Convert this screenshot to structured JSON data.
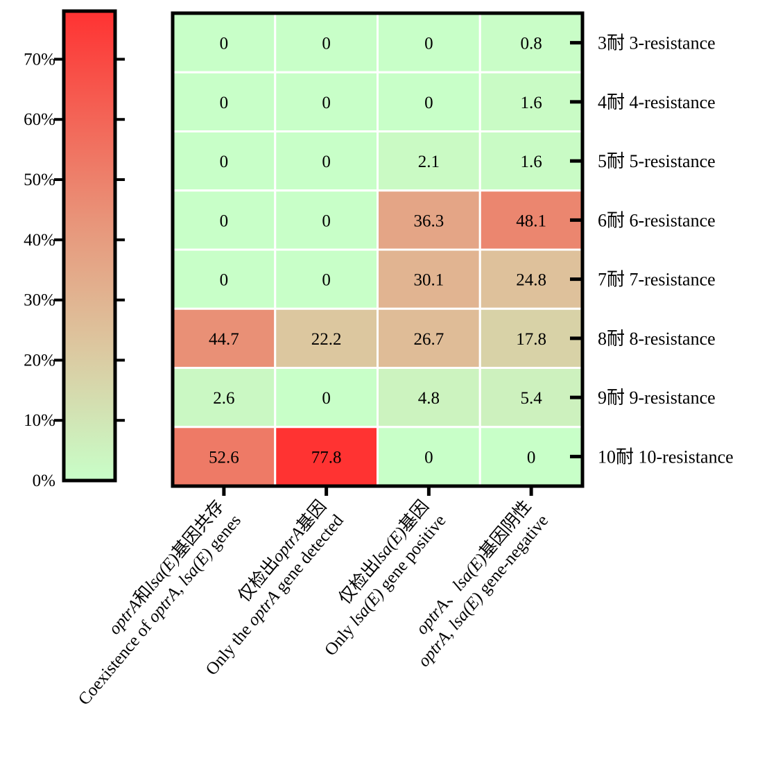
{
  "chart_data": {
    "type": "heatmap",
    "title": "",
    "columns": [
      {
        "line1": [
          {
            "text": "optrA",
            "italic": true
          },
          {
            "text": "和",
            "italic": false
          },
          {
            "text": "lsa(E)",
            "italic": true
          },
          {
            "text": "基因共存",
            "italic": false
          }
        ],
        "line2": [
          {
            "text": "Coexistence of ",
            "italic": false
          },
          {
            "text": "optrA, lsa(E)",
            "italic": true
          },
          {
            "text": " genes",
            "italic": false
          }
        ]
      },
      {
        "line1": [
          {
            "text": "仅检出",
            "italic": false
          },
          {
            "text": "optrA",
            "italic": true
          },
          {
            "text": "基因",
            "italic": false
          }
        ],
        "line2": [
          {
            "text": "Only the ",
            "italic": false
          },
          {
            "text": "optrA",
            "italic": true
          },
          {
            "text": " gene detected",
            "italic": false
          }
        ]
      },
      {
        "line1": [
          {
            "text": "仅检出",
            "italic": false
          },
          {
            "text": "lsa(E)",
            "italic": true
          },
          {
            "text": "基因",
            "italic": false
          }
        ],
        "line2": [
          {
            "text": "Only ",
            "italic": false
          },
          {
            "text": "lsa(E)",
            "italic": true
          },
          {
            "text": " gene positive",
            "italic": false
          }
        ]
      },
      {
        "line1": [
          {
            "text": "optrA",
            "italic": true
          },
          {
            "text": "、",
            "italic": false
          },
          {
            "text": "lsa(E)",
            "italic": true
          },
          {
            "text": "基因阴性",
            "italic": false
          }
        ],
        "line2": [
          {
            "text": "optrA, lsa(E)",
            "italic": true
          },
          {
            "text": " gene-negative",
            "italic": false
          }
        ]
      }
    ],
    "rows": [
      "3耐 3-resistance",
      "4耐 4-resistance",
      "5耐 5-resistance",
      "6耐 6-resistance",
      "7耐 7-resistance",
      "8耐 8-resistance",
      "9耐 9-resistance",
      "10耐 10-resistance"
    ],
    "values": [
      [
        0,
        0,
        0,
        0.8
      ],
      [
        0,
        0,
        0,
        1.6
      ],
      [
        0,
        0,
        2.1,
        1.6
      ],
      [
        0,
        0,
        36.3,
        48.1
      ],
      [
        0,
        0,
        30.1,
        24.8
      ],
      [
        44.7,
        22.2,
        26.7,
        17.8
      ],
      [
        2.6,
        0,
        4.8,
        5.4
      ],
      [
        52.6,
        77.8,
        0,
        0
      ]
    ],
    "value_labels": [
      [
        "0",
        "0",
        "0",
        "0.8"
      ],
      [
        "0",
        "0",
        "0",
        "1.6"
      ],
      [
        "0",
        "0",
        "2.1",
        "1.6"
      ],
      [
        "0",
        "0",
        "36.3",
        "48.1"
      ],
      [
        "0",
        "0",
        "30.1",
        "24.8"
      ],
      [
        "44.7",
        "22.2",
        "26.7",
        "17.8"
      ],
      [
        "2.6",
        "0",
        "4.8",
        "5.4"
      ],
      [
        "52.6",
        "77.8",
        "0",
        "0"
      ]
    ],
    "colorbar": {
      "range": [
        0,
        78
      ],
      "ticks": [
        0,
        10,
        20,
        30,
        40,
        50,
        60,
        70
      ],
      "tick_labels": [
        "0%",
        "10%",
        "20%",
        "30%",
        "40%",
        "50%",
        "60%",
        "70%"
      ],
      "position": "left",
      "stops": [
        {
          "offset": 0,
          "color": "#C8FFC8"
        },
        {
          "offset": 0.28,
          "color": "#DCC8A0"
        },
        {
          "offset": 0.55,
          "color": "#E8957A"
        },
        {
          "offset": 1,
          "color": "#FF3232"
        }
      ]
    },
    "grid_color": "#ffffff",
    "border_color": "#000000"
  }
}
